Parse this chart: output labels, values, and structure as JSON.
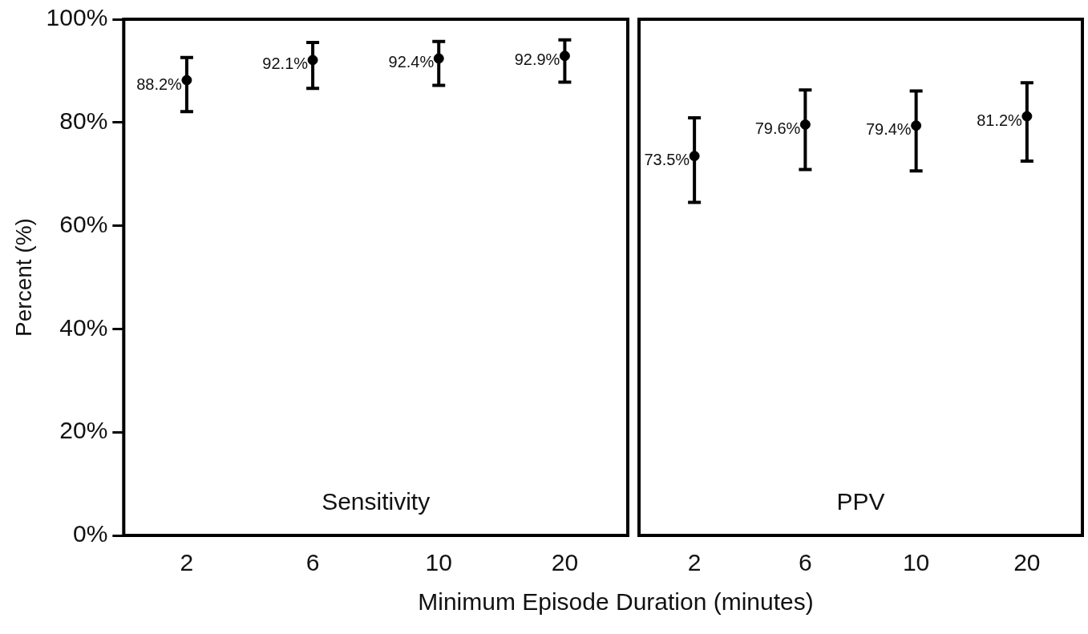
{
  "chart_data": [
    {
      "type": "scatter",
      "categories": [
        "2",
        "6",
        "10",
        "20"
      ],
      "values": [
        88.2,
        92.1,
        92.4,
        92.9
      ],
      "color": "#000000",
      "marker": "circle",
      "errors": [
        [
          82.1,
          92.6
        ],
        [
          86.6,
          95.5
        ],
        [
          87.2,
          95.7
        ],
        [
          87.8,
          96.0
        ]
      ],
      "value_labels": [
        "88.2%",
        "92.1%",
        "92.4%",
        "92.9%"
      ],
      "ylim": [
        0,
        100
      ],
      "yticks": [
        {
          "value": 0,
          "label": "0%"
        },
        {
          "value": 20,
          "label": "20%"
        },
        {
          "value": 40,
          "label": "40%"
        },
        {
          "value": 60,
          "label": "60%"
        },
        {
          "value": 80,
          "label": "80%"
        },
        {
          "value": 100,
          "label": "100%"
        }
      ],
      "ylabel": "Percent (%)",
      "xlabel": "Minimum Episode Duration (minutes)",
      "annotations": [
        "Sensitivity"
      ],
      "grid": false,
      "legend": false
    },
    {
      "type": "scatter",
      "categories": [
        "2",
        "6",
        "10",
        "20"
      ],
      "values": [
        73.5,
        79.6,
        79.4,
        81.2
      ],
      "color": "#000000",
      "marker": "circle",
      "errors": [
        [
          64.5,
          80.9
        ],
        [
          70.9,
          86.3
        ],
        [
          70.6,
          86.1
        ],
        [
          72.5,
          87.7
        ]
      ],
      "value_labels": [
        "73.5%",
        "79.6%",
        "79.4%",
        "81.2%"
      ],
      "ylim": [
        0,
        100
      ],
      "tick_labels": "x",
      "annotations": [
        "PPV"
      ],
      "grid": false,
      "legend": false
    }
  ]
}
